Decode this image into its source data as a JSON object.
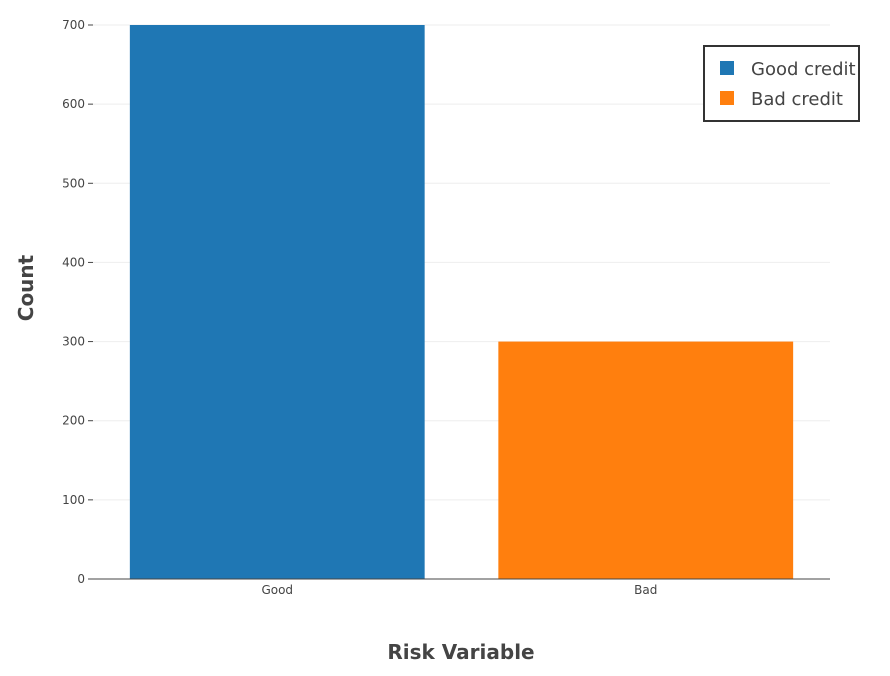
{
  "chart_data": {
    "type": "bar",
    "categories": [
      "Good",
      "Bad"
    ],
    "series": [
      {
        "name": "Good credit",
        "category": "Good",
        "value": 700,
        "color": "#1f77b4"
      },
      {
        "name": "Bad credit",
        "category": "Bad",
        "value": 300,
        "color": "#ff7f0e"
      }
    ],
    "xlabel": "Risk Variable",
    "ylabel": "Count",
    "ylim": [
      0,
      700
    ],
    "yticks": [
      0,
      100,
      200,
      300,
      400,
      500,
      600,
      700
    ],
    "grid": true,
    "legend_position": "top-right"
  }
}
